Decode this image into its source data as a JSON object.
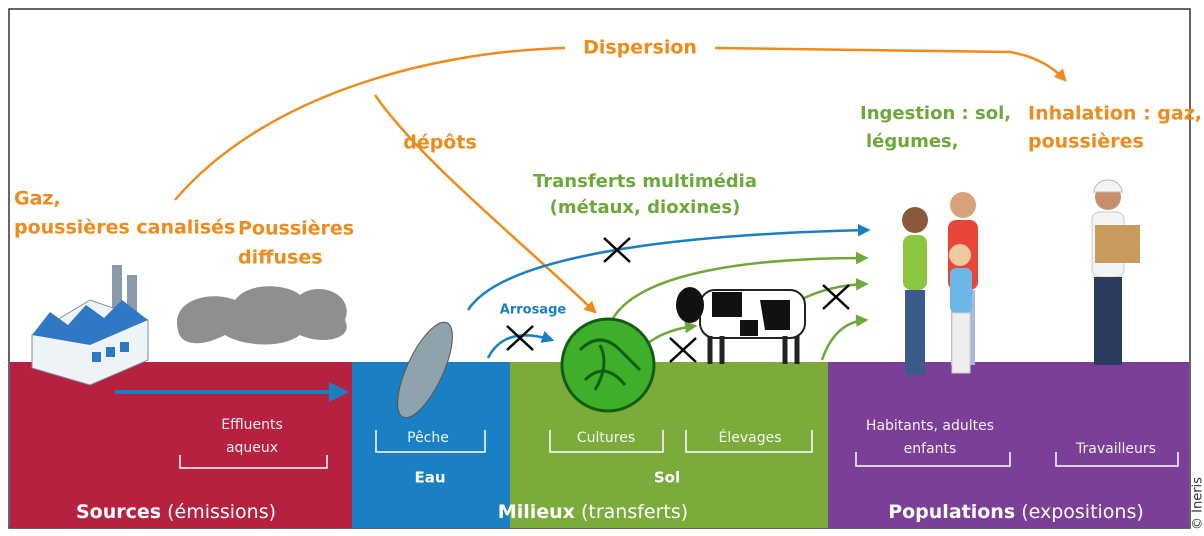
{
  "arrows": {
    "dispersion": "Dispersion",
    "depots": "dépôts",
    "arrosage": "Arrosage"
  },
  "emissions": {
    "canalises": [
      "Gaz,",
      "poussières canalisés"
    ],
    "diffuses": [
      "Poussières",
      "diffuses"
    ]
  },
  "transfers": [
    "Transferts multimédia",
    "(métaux, dioxines)"
  ],
  "exposures": {
    "ingestion": [
      "Ingestion : sol,",
      "légumes,"
    ],
    "inhalation": [
      "Inhalation : gaz,",
      "poussières"
    ]
  },
  "sources": {
    "title": "Sources",
    "subtitle": "(émissions)",
    "effluents": [
      "Effluents",
      "aqueux"
    ]
  },
  "milieux": {
    "title": "Milieux",
    "subtitle": "(transferts)",
    "eau": {
      "name": "Eau",
      "item": "Pêche"
    },
    "sol": {
      "name": "Sol",
      "items": [
        "Cultures",
        "Élevages"
      ]
    }
  },
  "populations": {
    "title": "Populations",
    "subtitle": "(expositions)",
    "items": [
      [
        "Habitants, adultes",
        "enfants"
      ],
      [
        "Travailleurs"
      ]
    ]
  },
  "credit": "© Ineris"
}
